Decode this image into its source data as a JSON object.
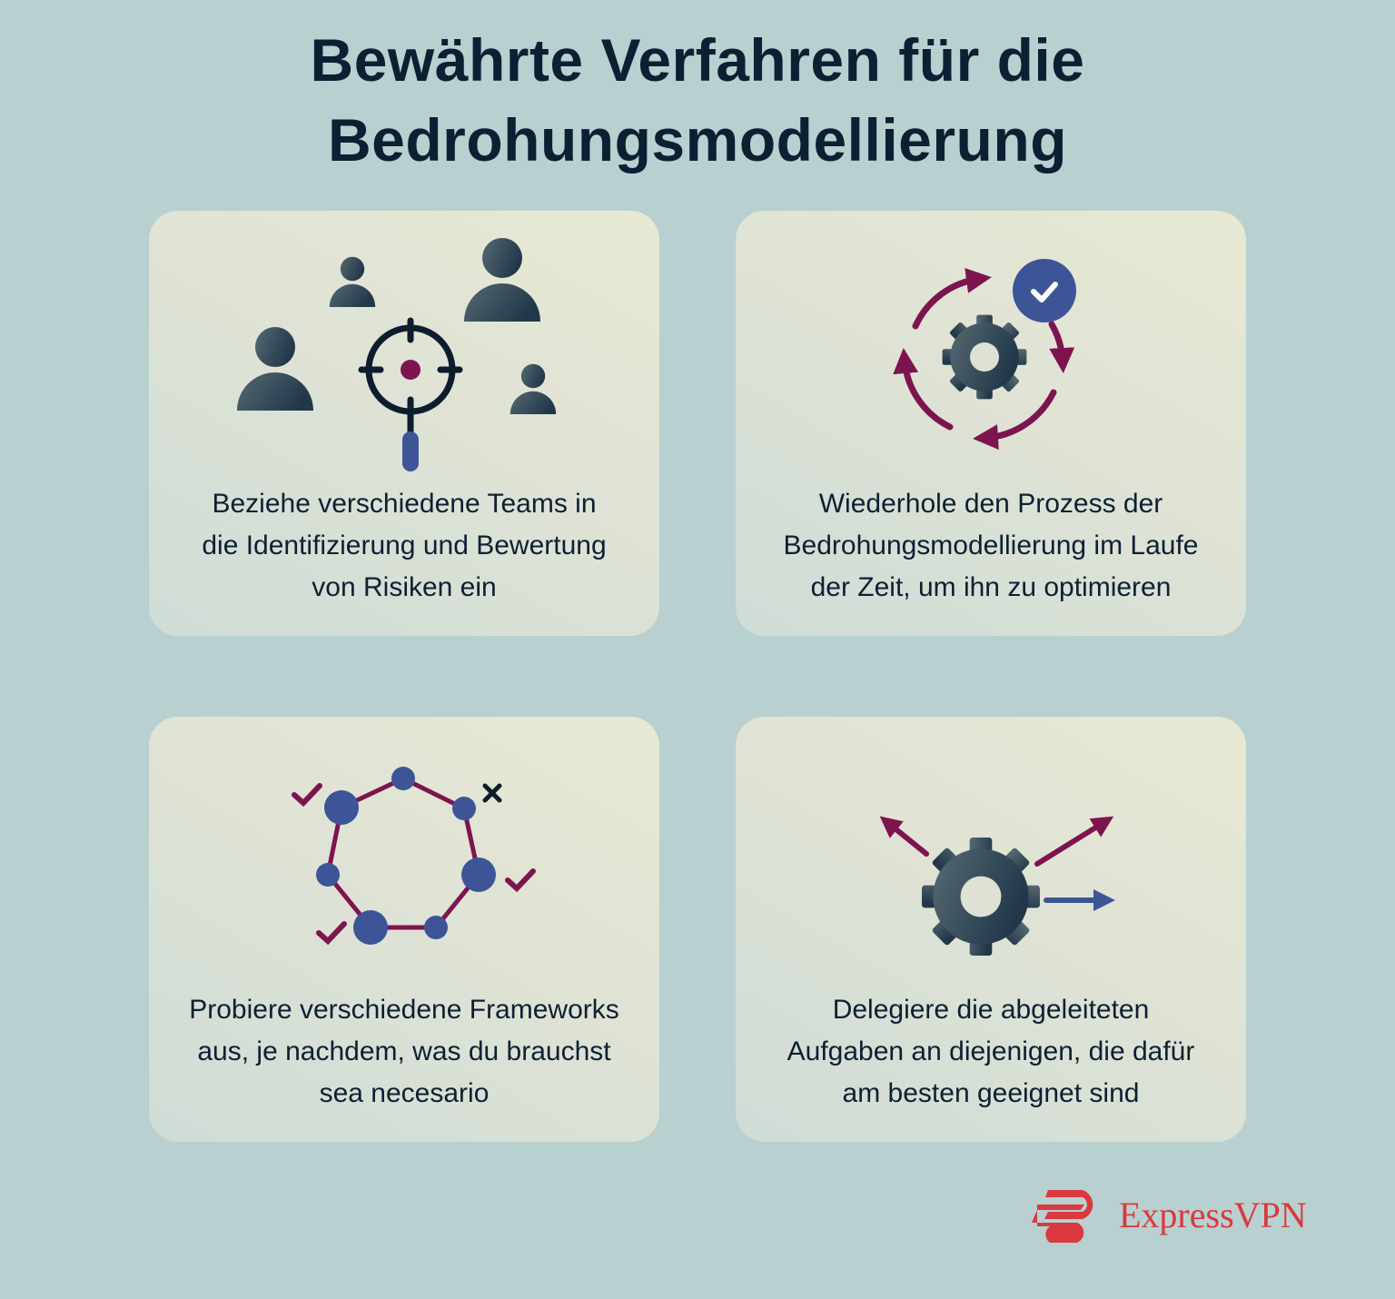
{
  "title": {
    "line1": "Bewährte Verfahren für die",
    "line2": "Bedrohungsmodellierung"
  },
  "cards": [
    {
      "icon": "people-target-magnifier-icon",
      "lines": [
        "Beziehe verschiedene Teams in",
        "die Identifizierung und Bewertung",
        "von Risiken ein"
      ]
    },
    {
      "icon": "gear-cycle-check-icon",
      "lines": [
        "Wiederhole den Prozess der",
        "Bedrohungsmodellierung im Laufe",
        "der Zeit, um ihn zu optimieren"
      ]
    },
    {
      "icon": "network-checks-icon",
      "lines": [
        "Probiere verschiedene Frameworks",
        "aus, je nachdem, was du brauchst",
        "sea necesario"
      ]
    },
    {
      "icon": "gear-arrows-delegate-icon",
      "lines": [
        "Delegiere die abgeleiteten",
        "Aufgaben an diejenigen, die dafür",
        "am besten geeignet sind"
      ]
    }
  ],
  "logo": {
    "text": "ExpressVPN"
  },
  "colors": {
    "background": "#b8d0d0",
    "text": "#0d2033",
    "accent_purple": "#7d1450",
    "accent_blue": "#3d5597",
    "icon_gray": "#3f535e",
    "brand_red": "#da3940"
  }
}
